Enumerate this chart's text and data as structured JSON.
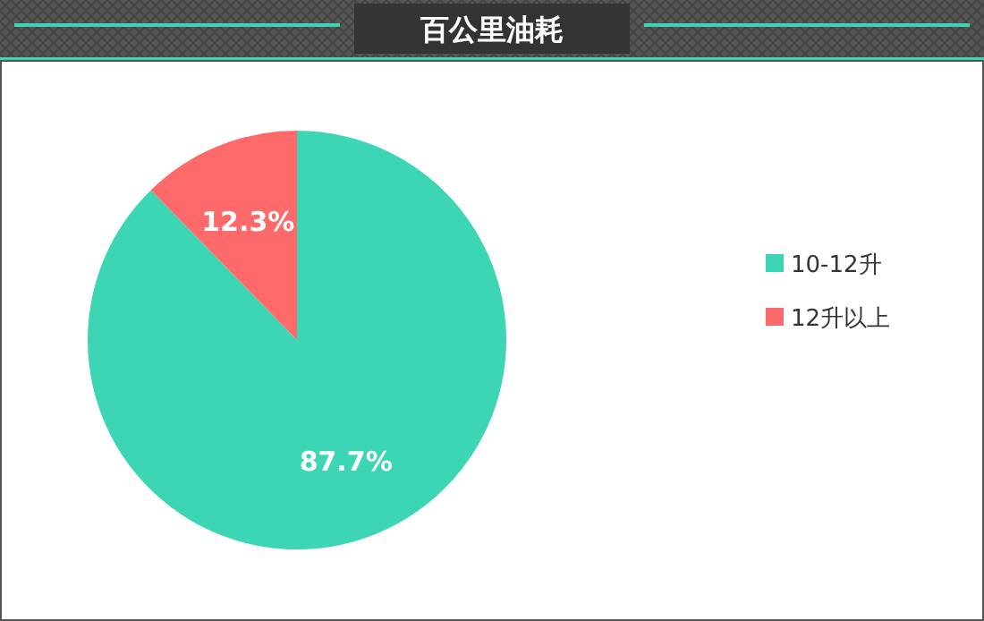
{
  "chart_data": {
    "type": "pie",
    "title": "百公里油耗",
    "categories": [
      "10-12升",
      "12升以上"
    ],
    "values": [
      87.7,
      12.3
    ],
    "colors": [
      "#3dd6b5",
      "#fe6a6a"
    ],
    "value_labels": [
      "87.7%",
      "12.3%"
    ],
    "legend": "right"
  }
}
